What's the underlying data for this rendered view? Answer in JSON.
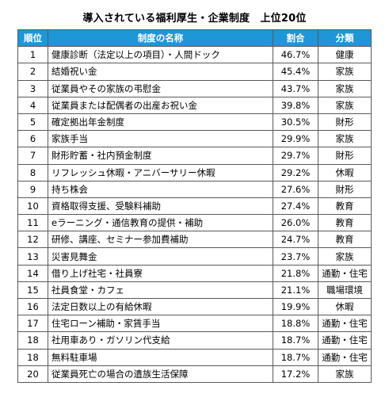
{
  "title": "導入されている福利厚生・企業制度　上位20位",
  "colors": {
    "header_bg": "#1F96D6",
    "header_text": "#FFFFFF",
    "border": "#595959"
  },
  "table": {
    "headers": [
      "順位",
      "制度の名称",
      "割合",
      "分類"
    ],
    "rows": [
      {
        "rank": "1",
        "name": "健康診断（法定以上の項目）・人間ドック",
        "rate": "46.7%",
        "category": "健康"
      },
      {
        "rank": "2",
        "name": "結婚祝い金",
        "rate": "45.4%",
        "category": "家族"
      },
      {
        "rank": "3",
        "name": "従業員やその家族の弔慰金",
        "rate": "43.7%",
        "category": "家族"
      },
      {
        "rank": "4",
        "name": "従業員または配偶者の出産お祝い金",
        "rate": "39.8%",
        "category": "家族"
      },
      {
        "rank": "5",
        "name": "確定拠出年金制度",
        "rate": "30.5%",
        "category": "財形"
      },
      {
        "rank": "6",
        "name": "家族手当",
        "rate": "29.9%",
        "category": "家族"
      },
      {
        "rank": "7",
        "name": "財形貯蓄・社内預金制度",
        "rate": "29.7%",
        "category": "財形"
      },
      {
        "rank": "8",
        "name": "リフレッシュ休暇・アニバーサリー休暇",
        "rate": "29.2%",
        "category": "休暇"
      },
      {
        "rank": "9",
        "name": "持ち株会",
        "rate": "27.6%",
        "category": "財形"
      },
      {
        "rank": "10",
        "name": "資格取得支援、受験料補助",
        "rate": "27.4%",
        "category": "教育"
      },
      {
        "rank": "11",
        "name": "eラーニング・通信教育の提供・補助",
        "rate": "26.0%",
        "category": "教育"
      },
      {
        "rank": "12",
        "name": "研修、講座、セミナー参加費補助",
        "rate": "24.7%",
        "category": "教育"
      },
      {
        "rank": "13",
        "name": "災害見舞金",
        "rate": "23.7%",
        "category": "家族"
      },
      {
        "rank": "14",
        "name": "借り上げ社宅・社員寮",
        "rate": "21.8%",
        "category": "通勤・住宅"
      },
      {
        "rank": "15",
        "name": "社員食堂・カフェ",
        "rate": "21.1%",
        "category": "職場環境"
      },
      {
        "rank": "16",
        "name": "法定日数以上の有給休暇",
        "rate": "19.9%",
        "category": "休暇"
      },
      {
        "rank": "17",
        "name": "住宅ローン補助・家賃手当",
        "rate": "18.8%",
        "category": "通勤・住宅"
      },
      {
        "rank": "18",
        "name": "社用車あり・ガソリン代支給",
        "rate": "18.7%",
        "category": "通勤・住宅"
      },
      {
        "rank": "18",
        "name": "無料駐車場",
        "rate": "18.7%",
        "category": "通勤・住宅"
      },
      {
        "rank": "20",
        "name": "従業員死亡の場合の遺族生活保障",
        "rate": "17.2%",
        "category": "家族"
      }
    ]
  }
}
